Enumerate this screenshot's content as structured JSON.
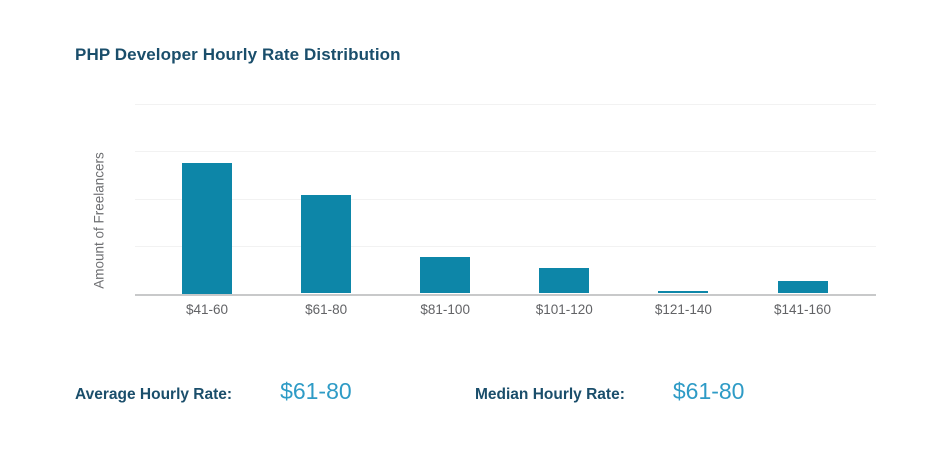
{
  "title": "PHP Developer Hourly Rate Distribution",
  "colors": {
    "background": "#ffffff",
    "title_text": "#1a4e6b",
    "bar": "#0d86a8",
    "accent_value_text": "#2e9bc6",
    "axis_label_text": "#6e6f72",
    "tick_label_text": "#626366",
    "gridline": "#f2f2f2",
    "baseline": "#c8c9ca"
  },
  "chart_data": {
    "type": "bar",
    "title": "PHP Developer Hourly Rate Distribution",
    "categories": [
      "$41-60",
      "$61-80",
      "$81-100",
      "$101-120",
      "$121-140",
      "$141-160"
    ],
    "values": [
      2.75,
      2.07,
      0.76,
      0.53,
      0.06,
      0.27
    ],
    "xlabel": "",
    "ylabel": "Amount of Freelancers",
    "ylim": [
      0,
      4
    ],
    "y_tick_labels": [],
    "grid": true,
    "legend": "none",
    "value_scale_note": "y-axis has no numeric labels; values estimated in gridline units (1 unit = 1 gridline interval)"
  },
  "stats": [
    {
      "label": "Average Hourly Rate:",
      "value": "$61-80"
    },
    {
      "label": "Median Hourly Rate:",
      "value": "$61-80"
    }
  ]
}
